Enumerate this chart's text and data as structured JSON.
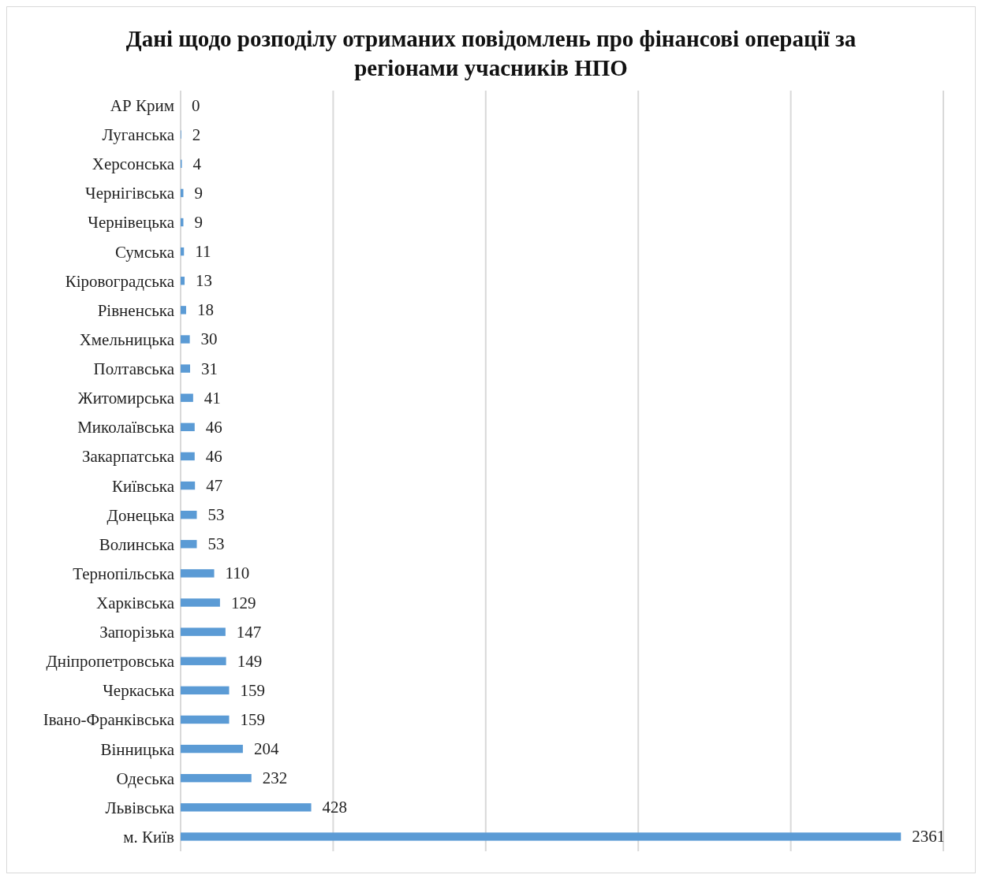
{
  "chart_data": {
    "type": "bar",
    "orientation": "horizontal",
    "title": "Дані щодо розподілу отриманих повідомлень про фінансові операції за регіонами учасників НПО",
    "categories": [
      "АР Крим",
      "Луганська",
      "Херсонська",
      "Чернігівська",
      "Чернівецька",
      "Сумська",
      "Кіровоградська",
      "Рівненська",
      "Хмельницька",
      "Полтавська",
      "Житомирська",
      "Миколаївська",
      "Закарпатська",
      "Київська",
      "Донецька",
      "Волинська",
      "Тернопільська",
      "Харківська",
      "Запорізька",
      "Дніпропетровська",
      "Черкаська",
      "Івано-Франківська",
      "Вінницька",
      "Одеська",
      "Львівська",
      "м. Київ"
    ],
    "values": [
      0,
      2,
      4,
      9,
      9,
      11,
      13,
      18,
      30,
      31,
      41,
      46,
      46,
      47,
      53,
      53,
      110,
      129,
      147,
      149,
      159,
      159,
      204,
      232,
      428,
      2361
    ],
    "color": "#5b9bd5",
    "xlim": [
      0,
      2500
    ],
    "xticks": [
      {
        "value": 0,
        "label": null
      },
      {
        "value": 500,
        "label": null
      },
      {
        "value": 1000,
        "label": null
      },
      {
        "value": 1500,
        "label": null
      },
      {
        "value": 2000,
        "label": null
      },
      {
        "value": 2500,
        "label": null
      }
    ],
    "tick_labels": "y",
    "grid": "x",
    "data_labels": true
  }
}
